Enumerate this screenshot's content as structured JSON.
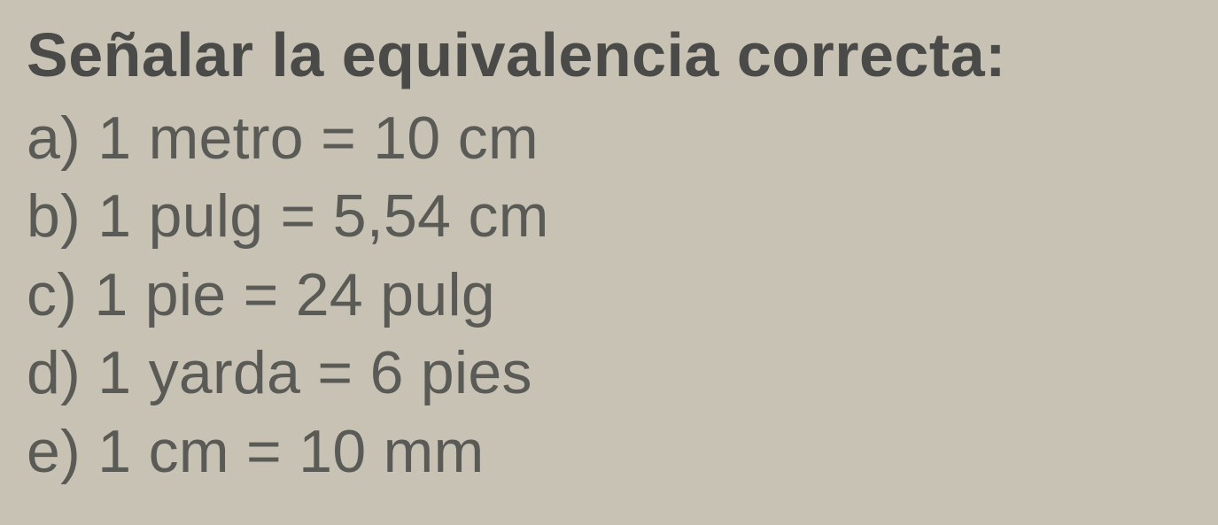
{
  "question": {
    "title": "Señalar la equivalencia correcta:",
    "title_color": "#4a4a48",
    "title_fontsize": 70,
    "title_fontweight": "bold",
    "options": [
      {
        "label": "a)",
        "text": "1 metro = 10 cm"
      },
      {
        "label": "b)",
        "text": "1 pulg = 5,54 cm"
      },
      {
        "label": "c)",
        "text": "1 pie = 24 pulg"
      },
      {
        "label": "d)",
        "text": "1 yarda = 6 pies"
      },
      {
        "label": "e)",
        "text": "1 cm = 10 mm"
      }
    ],
    "option_color": "#5a5a56",
    "option_fontsize": 68,
    "background_color": "#c8c2b4"
  }
}
